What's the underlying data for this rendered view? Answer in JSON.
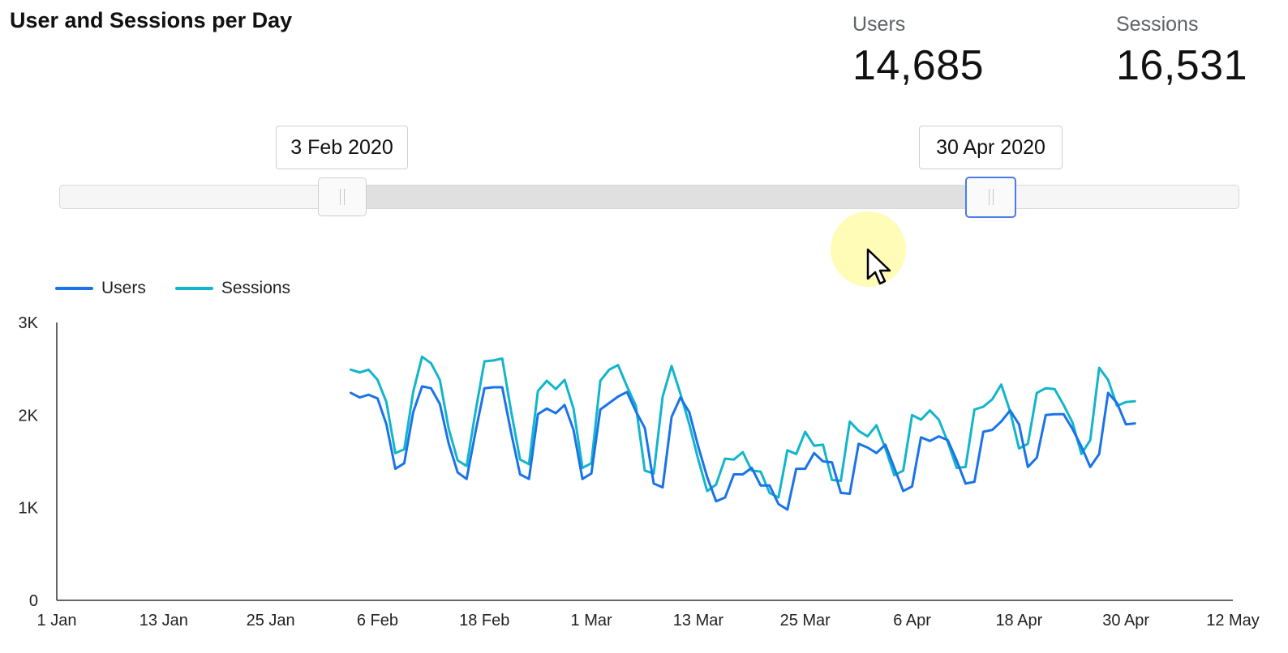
{
  "header": {
    "title": "User and Sessions per Day"
  },
  "kpis": {
    "users": {
      "label": "Users",
      "value": "14,685"
    },
    "sessions": {
      "label": "Sessions",
      "value": "16,531"
    }
  },
  "date_slider": {
    "start_label": "3 Feb 2020",
    "end_label": "30 Apr 2020",
    "range_start": "2020-02-03",
    "range_end": "2020-04-30",
    "axis_start": "2020-01-01",
    "axis_end": "2020-05-12"
  },
  "cursor": {
    "icon": "arrow-cursor-icon"
  },
  "chart_data": {
    "type": "line",
    "legend_position": "top-left",
    "grid": false,
    "xlim": [
      "2020-01-01",
      "2020-05-12"
    ],
    "ylim": [
      0,
      3000
    ],
    "y_ticks": [
      {
        "value": 0,
        "label": "0"
      },
      {
        "value": 1000,
        "label": "1K"
      },
      {
        "value": 2000,
        "label": "2K"
      },
      {
        "value": 3000,
        "label": "3K"
      }
    ],
    "x_ticks": [
      {
        "date": "2020-01-01",
        "label": "1 Jan"
      },
      {
        "date": "2020-01-13",
        "label": "13 Jan"
      },
      {
        "date": "2020-01-25",
        "label": "25 Jan"
      },
      {
        "date": "2020-02-06",
        "label": "6 Feb"
      },
      {
        "date": "2020-02-18",
        "label": "18 Feb"
      },
      {
        "date": "2020-03-01",
        "label": "1 Mar"
      },
      {
        "date": "2020-03-13",
        "label": "13 Mar"
      },
      {
        "date": "2020-03-25",
        "label": "25 Mar"
      },
      {
        "date": "2020-04-06",
        "label": "6 Apr"
      },
      {
        "date": "2020-04-18",
        "label": "18 Apr"
      },
      {
        "date": "2020-04-30",
        "label": "30 Apr"
      },
      {
        "date": "2020-05-12",
        "label": "12 May"
      }
    ],
    "x_start": "2020-02-03",
    "x_end": "2020-04-30",
    "series": [
      {
        "name": "Users",
        "color": "#1a73e8",
        "values": [
          2240,
          2190,
          2220,
          2180,
          1900,
          1420,
          1480,
          2030,
          2310,
          2290,
          2120,
          1690,
          1380,
          1310,
          1820,
          2290,
          2300,
          2300,
          1810,
          1360,
          1310,
          2010,
          2070,
          2020,
          2110,
          1840,
          1310,
          1370,
          2060,
          2130,
          2200,
          2250,
          2040,
          1860,
          1260,
          1220,
          1980,
          2190,
          2030,
          1660,
          1330,
          1070,
          1110,
          1360,
          1360,
          1430,
          1240,
          1240,
          1040,
          980,
          1420,
          1420,
          1590,
          1500,
          1490,
          1160,
          1150,
          1690,
          1650,
          1590,
          1680,
          1430,
          1180,
          1230,
          1760,
          1720,
          1770,
          1730,
          1510,
          1260,
          1280,
          1820,
          1840,
          1930,
          2050,
          1900,
          1440,
          1540,
          2000,
          2010,
          2010,
          1850,
          1660,
          1440,
          1580,
          2240,
          2130,
          1900,
          1910
        ]
      },
      {
        "name": "Sessions",
        "color": "#12b5cb",
        "values": [
          2490,
          2460,
          2490,
          2380,
          2140,
          1590,
          1630,
          2250,
          2630,
          2560,
          2380,
          1850,
          1510,
          1450,
          2040,
          2580,
          2590,
          2610,
          2040,
          1520,
          1470,
          2260,
          2370,
          2280,
          2380,
          2070,
          1430,
          1480,
          2370,
          2490,
          2540,
          2310,
          2100,
          1400,
          1370,
          2200,
          2530,
          2230,
          1900,
          1520,
          1180,
          1250,
          1530,
          1520,
          1600,
          1400,
          1390,
          1160,
          1110,
          1620,
          1580,
          1820,
          1670,
          1680,
          1300,
          1290,
          1930,
          1830,
          1770,
          1890,
          1640,
          1350,
          1400,
          2000,
          1950,
          2050,
          1950,
          1710,
          1430,
          1440,
          2060,
          2090,
          2170,
          2330,
          2040,
          1640,
          1690,
          2240,
          2290,
          2280,
          2110,
          1920,
          1580,
          1730,
          2510,
          2380,
          2100,
          2140,
          2150
        ]
      }
    ]
  }
}
